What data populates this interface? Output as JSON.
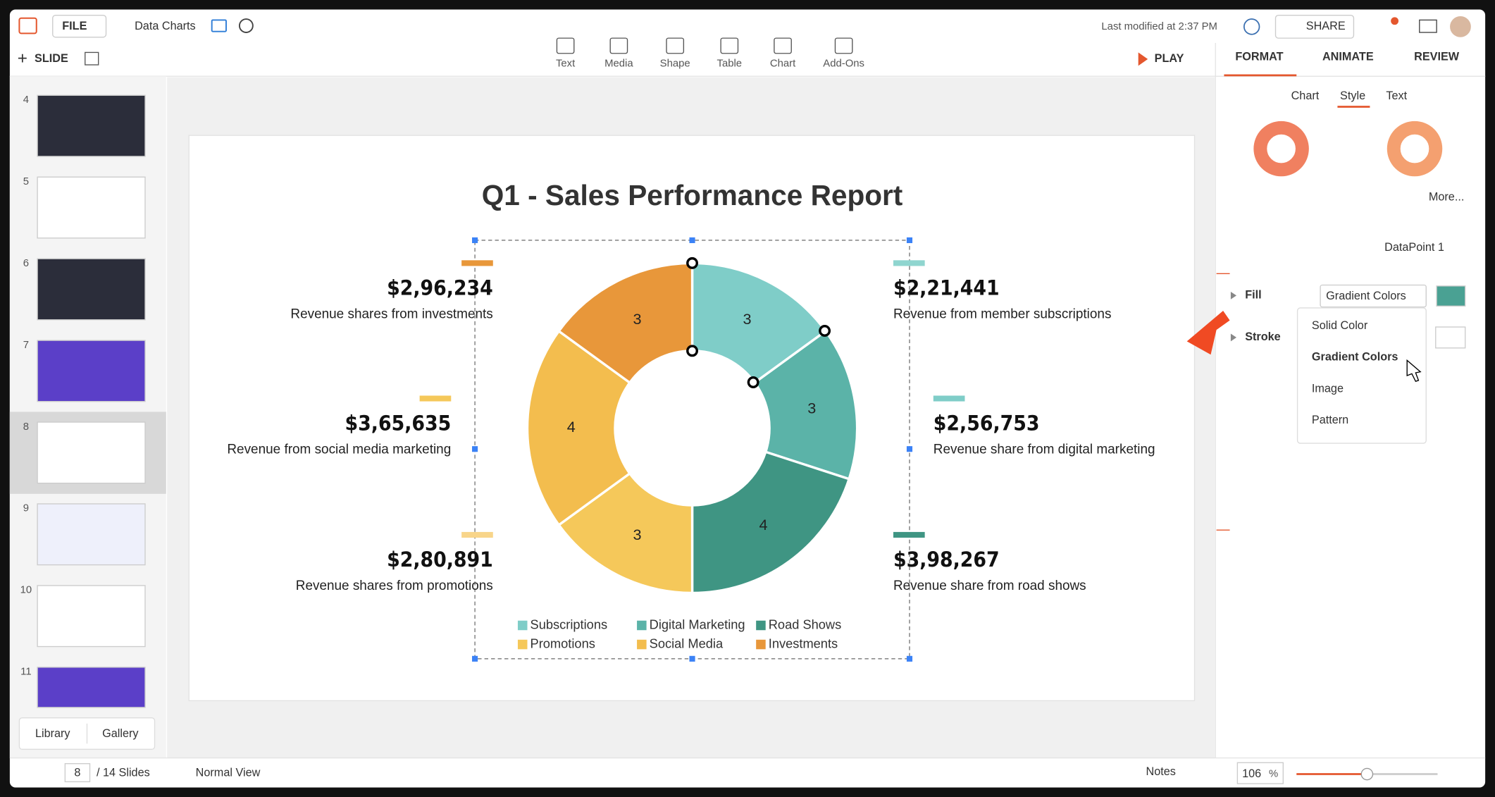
{
  "app": {
    "file_menu": "FILE",
    "doc_title": "Data Charts",
    "last_modified": "Last modified at 2:37 PM",
    "share": "SHARE"
  },
  "toolbar": {
    "slide": "SLIDE",
    "tools": [
      "Text",
      "Media",
      "Shape",
      "Table",
      "Chart",
      "Add-Ons"
    ],
    "play": "PLAY"
  },
  "panel": {
    "tabs": [
      "FORMAT",
      "ANIMATE",
      "REVIEW"
    ],
    "subtabs": [
      "Chart",
      "Style",
      "Text"
    ],
    "more": "More...",
    "datapoint": "DataPoint 1",
    "fill": "Fill",
    "fill_value": "Gradient Colors",
    "stroke": "Stroke",
    "fill_options": [
      "Solid Color",
      "Gradient Colors",
      "Image",
      "Pattern"
    ]
  },
  "thumbnails": [
    "4",
    "5",
    "6",
    "7",
    "8",
    "9",
    "10",
    "11"
  ],
  "library": "Library",
  "gallery": "Gallery",
  "status": {
    "current": "8",
    "total": "/ 14 Slides",
    "view": "Normal View",
    "notes": "Notes",
    "zoom": "106",
    "zoom_unit": "%"
  },
  "slide": {
    "title": "Q1 - Sales Performance Report",
    "callouts": [
      {
        "amount": "$2,96,234",
        "text": "Revenue shares from investments",
        "color": "#e8973a"
      },
      {
        "amount": "$3,65,635",
        "text": "Revenue from social media marketing",
        "color": "#f5c85a"
      },
      {
        "amount": "$2,80,891",
        "text": "Revenue shares from promotions",
        "color": "#f8d58a"
      },
      {
        "amount": "$2,21,441",
        "text": "Revenue from member subscriptions",
        "color": "#8fd5cf"
      },
      {
        "amount": "$2,56,753",
        "text": "Revenue share from digital marketing",
        "color": "#7fcdc8"
      },
      {
        "amount": "$3,98,267",
        "text": "Revenue share from road shows",
        "color": "#3f9583"
      }
    ],
    "chart": {
      "type": "donut",
      "categories": [
        "Subscriptions",
        "Digital Marketing",
        "Road Shows",
        "Promotions",
        "Social Media",
        "Investments"
      ],
      "values": [
        3,
        3,
        4,
        3,
        4,
        3
      ],
      "colors": [
        "#7fcdc8",
        "#5bb3a8",
        "#3f9583",
        "#f5c85a",
        "#f3bd4e",
        "#e8973a"
      ]
    }
  }
}
